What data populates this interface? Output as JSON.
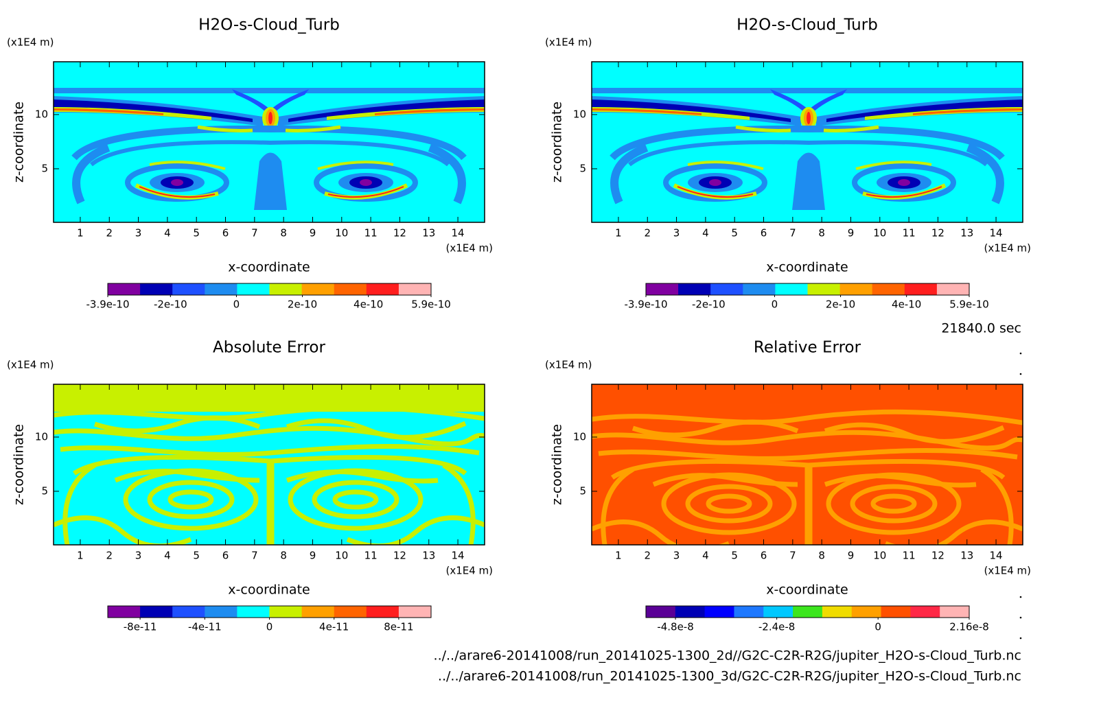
{
  "chart_data": [
    {
      "type": "contour",
      "title": "H2O-s-Cloud_Turb",
      "x_label": "x-coordinate",
      "y_label": "z-coordinate",
      "x_unit": "(x1E4 m)",
      "y_unit": "(x1E4 m)",
      "xlim": [
        0.08,
        14.92
      ],
      "ylim": [
        0.06,
        14.87
      ],
      "xticks": [
        1,
        2,
        3,
        4,
        5,
        6,
        7,
        8,
        9,
        10,
        11,
        12,
        13,
        14
      ],
      "yticks": [
        5,
        10
      ],
      "colorbar": {
        "lim": [
          -3.9e-10,
          5.9e-10
        ],
        "ticks": [
          -3.9e-10,
          -2e-10,
          0,
          2e-10,
          4e-10,
          5.9e-10
        ],
        "colors": [
          "#8000a0",
          "#0000b4",
          "#1e50ff",
          "#1e8cf0",
          "#00ffff",
          "#c8f000",
          "#ffa000",
          "#ff6400",
          "#ff1e1e",
          "#ffb4b4"
        ]
      }
    },
    {
      "type": "contour",
      "title": "H2O-s-Cloud_Turb",
      "x_label": "x-coordinate",
      "y_label": "z-coordinate",
      "x_unit": "(x1E4 m)",
      "y_unit": "(x1E4 m)",
      "xlim": [
        0.08,
        14.92
      ],
      "ylim": [
        0.06,
        14.87
      ],
      "xticks": [
        1,
        2,
        3,
        4,
        5,
        6,
        7,
        8,
        9,
        10,
        11,
        12,
        13,
        14
      ],
      "yticks": [
        5,
        10
      ],
      "colorbar": {
        "lim": [
          -3.9e-10,
          5.9e-10
        ],
        "ticks": [
          -3.9e-10,
          -2e-10,
          0,
          2e-10,
          4e-10,
          5.9e-10
        ],
        "colors": [
          "#8000a0",
          "#0000b4",
          "#1e50ff",
          "#1e8cf0",
          "#00ffff",
          "#c8f000",
          "#ffa000",
          "#ff6400",
          "#ff1e1e",
          "#ffb4b4"
        ]
      }
    },
    {
      "type": "contour",
      "title": "Absolute Error",
      "x_label": "x-coordinate",
      "y_label": "z-coordinate",
      "x_unit": "(x1E4 m)",
      "y_unit": "(x1E4 m)",
      "xlim": [
        0.08,
        14.92
      ],
      "ylim": [
        0.06,
        14.87
      ],
      "xticks": [
        1,
        2,
        3,
        4,
        5,
        6,
        7,
        8,
        9,
        10,
        11,
        12,
        13,
        14
      ],
      "yticks": [
        5,
        10
      ],
      "colorbar": {
        "lim": [
          -1e-10,
          1e-10
        ],
        "ticks": [
          -8e-11,
          -4e-11,
          0,
          4e-11,
          8e-11
        ],
        "colors": [
          "#8000a0",
          "#0000b4",
          "#1e50ff",
          "#1e8cf0",
          "#00ffff",
          "#c8f000",
          "#ffa000",
          "#ff6400",
          "#ff1e1e",
          "#ffb4b4"
        ]
      }
    },
    {
      "type": "contour",
      "title": "Relative Error",
      "x_label": "x-coordinate",
      "y_label": "z-coordinate",
      "x_unit": "(x1E4 m)",
      "y_unit": "(x1E4 m)",
      "xlim": [
        0.08,
        14.92
      ],
      "ylim": [
        0.06,
        14.87
      ],
      "xticks": [
        1,
        2,
        3,
        4,
        5,
        6,
        7,
        8,
        9,
        10,
        11,
        12,
        13,
        14
      ],
      "yticks": [
        5,
        10
      ],
      "colorbar": {
        "lim": [
          -5.5e-08,
          2.16e-08
        ],
        "ticks": [
          -4.8e-08,
          -2.4e-08,
          0,
          2.16e-08
        ],
        "colors": [
          "#5a0096",
          "#0000b4",
          "#0000ff",
          "#1e78ff",
          "#00c8ff",
          "#3ce61e",
          "#f0dc00",
          "#ffa000",
          "#ff5000",
          "#ff2846",
          "#ffb4b4"
        ]
      }
    }
  ],
  "time_label": "21840.0 sec",
  "files": [
    "../../arare6-20141008/run_20141025-1300_2d//G2C-C2R-R2G/jupiter_H2O-s-Cloud_Turb.nc",
    "../../arare6-20141008/run_20141025-1300_3d/G2C-C2R-R2G/jupiter_H2O-s-Cloud_Turb.nc"
  ]
}
